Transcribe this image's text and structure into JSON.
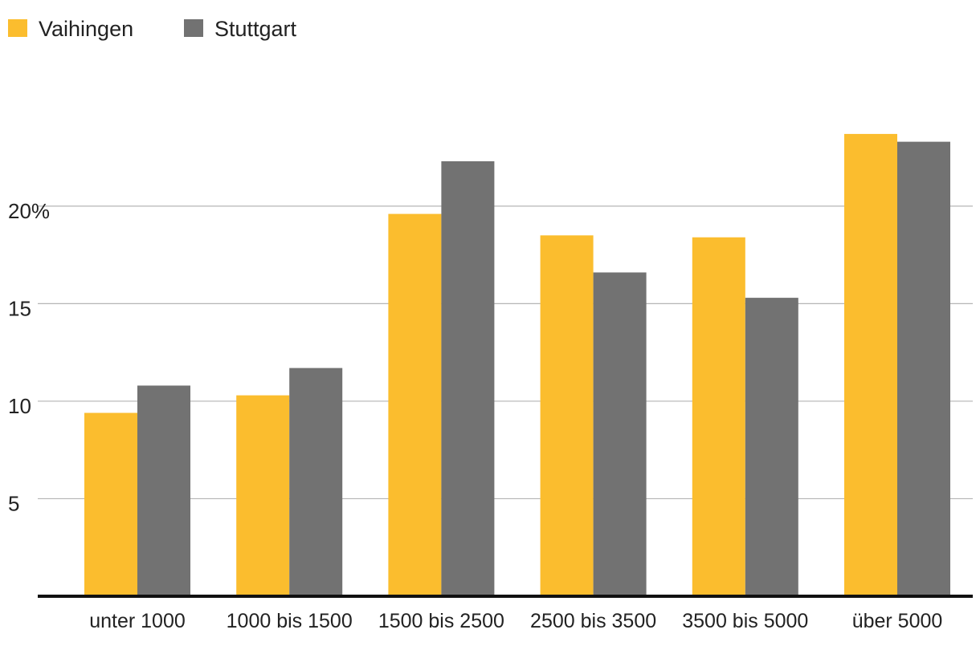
{
  "chart_data": {
    "type": "bar",
    "title": "",
    "xlabel": "",
    "ylabel": "",
    "categories": [
      "unter 1000",
      "1000 bis 1500",
      "1500 bis 2500",
      "2500 bis 3500",
      "3500 bis 5000",
      "über 5000"
    ],
    "series": [
      {
        "name": "Vaihingen",
        "color": "#fbbd2e",
        "values": [
          9.4,
          10.3,
          19.6,
          18.5,
          18.4,
          23.7
        ]
      },
      {
        "name": "Stuttgart",
        "color": "#727272",
        "values": [
          10.8,
          11.7,
          22.3,
          16.6,
          15.3,
          23.3
        ]
      }
    ],
    "ylim": [
      0,
      26
    ],
    "yticks": [
      5,
      10,
      15,
      20
    ],
    "ytick_labels": [
      "5",
      "10",
      "15",
      "20%"
    ],
    "grid": true,
    "legend_position": "top-left"
  }
}
